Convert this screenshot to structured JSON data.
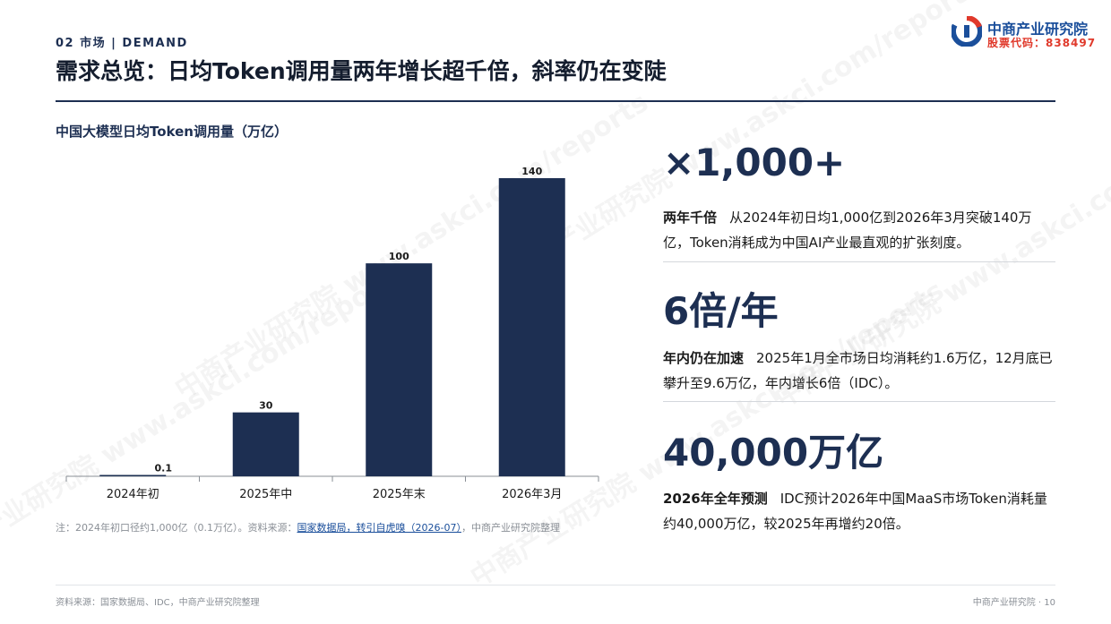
{
  "header": {
    "section_tag": "02 市场 | DEMAND",
    "title": "需求总览：日均Token调用量两年增长超千倍，斜率仍在变陡"
  },
  "logo": {
    "name": "中商产业研究院",
    "stock_code": "股票代码：838497",
    "colors": {
      "primary": "#1b4f9b",
      "accent": "#e0392b"
    },
    "icon": "company-logo-icon"
  },
  "watermark": {
    "text": "中商产业研究院 www.askci.com/reports"
  },
  "chart_title": "中国大模型日均Token调用量（万亿）",
  "chart_data": {
    "type": "bar",
    "categories": [
      "2024年初",
      "2025年中",
      "2025年末",
      "2026年3月"
    ],
    "values": [
      0.1,
      30,
      100,
      140
    ],
    "data_labels": [
      "0.1",
      "30",
      "100",
      "140"
    ],
    "title": "中国大模型日均Token调用量（万亿）",
    "xlabel": "",
    "ylabel": "",
    "ylim": [
      0,
      140
    ],
    "grid": false,
    "legend": "none",
    "bar_color": "#1d2f52"
  },
  "note": {
    "prefix": "注：2024年初口径约1,000亿（0.1万亿）。资料来源：",
    "link": "国家数据局，转引自虎嗅（2026-07）",
    "suffix": "，中商产业研究院整理"
  },
  "stats": [
    {
      "big": "×1,000+",
      "lead": "两年千倍",
      "text": "从2024年初日均1,000亿到2026年3月突破140万亿，Token消耗成为中国AI产业最直观的扩张刻度。"
    },
    {
      "big": "6倍/年",
      "lead": "年内仍在加速",
      "text": "2025年1月全市场日均消耗约1.6万亿，12月底已攀升至9.6万亿，年内增长6倍（IDC）。"
    },
    {
      "big": "40,000万亿",
      "lead": "2026年全年预测",
      "text": "IDC预计2026年中国MaaS市场Token消耗量约40,000万亿，较2025年再增约20倍。"
    }
  ],
  "footer": {
    "source": "资料来源：国家数据局、IDC，中商产业研究院整理",
    "page": "中商产业研究院 · 10"
  }
}
